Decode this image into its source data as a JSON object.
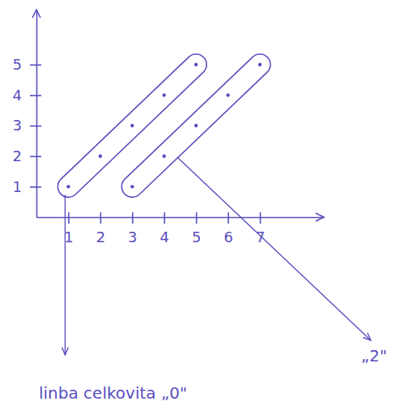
{
  "chart_data": {
    "type": "scatter",
    "color": "#5a4fc0",
    "xlim": [
      0,
      9
    ],
    "xticks": [
      1,
      2,
      3,
      4,
      5,
      6,
      7
    ],
    "ylim": [
      0,
      6.8
    ],
    "yticks": [
      1,
      2,
      3,
      4,
      5
    ],
    "grid": false,
    "series": [
      {
        "name": "linba celkovita „0\"",
        "x": [
          1,
          2,
          3,
          4,
          5
        ],
        "values": [
          1,
          2,
          3,
          4,
          5
        ]
      },
      {
        "name": "„2\"",
        "x": [
          3,
          4,
          5,
          6,
          7
        ],
        "values": [
          1,
          2,
          3,
          4,
          5
        ]
      }
    ]
  }
}
